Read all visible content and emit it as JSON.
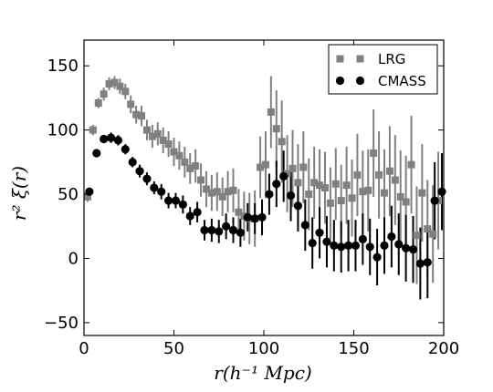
{
  "chart_data": {
    "type": "scatter",
    "xlabel": "r(h⁻¹ Mpc)",
    "ylabel": "r² ξ(r)",
    "xlim": [
      0,
      200
    ],
    "ylim": [
      -60,
      170
    ],
    "xticks": [
      "0",
      "50",
      "100",
      "150",
      "200"
    ],
    "yticks": [
      "−50",
      "0",
      "50",
      "100",
      "150"
    ],
    "xtick_values": [
      0,
      50,
      100,
      150,
      200
    ],
    "ytick_values": [
      -50,
      0,
      50,
      100,
      150
    ],
    "grid": false,
    "legend_position": "top-right",
    "series": [
      {
        "name": "LRG",
        "marker": "square",
        "color": "#808080",
        "x": [
          2,
          5,
          8,
          11,
          14,
          17,
          20,
          23,
          26,
          29,
          32,
          35,
          38,
          41,
          44,
          47,
          50,
          53,
          56,
          59,
          62,
          65,
          68,
          71,
          74,
          77,
          80,
          83,
          86,
          89,
          92,
          95,
          98,
          101,
          104,
          107,
          110,
          113,
          116,
          119,
          122,
          125,
          128,
          131,
          134,
          137,
          140,
          143,
          146,
          149,
          152,
          155,
          158,
          161,
          164,
          167,
          170,
          173,
          176,
          179,
          182,
          185,
          188,
          191,
          194,
          197
        ],
        "y": [
          48,
          100,
          121,
          128,
          136,
          137,
          134,
          130,
          120,
          112,
          111,
          100,
          95,
          97,
          92,
          89,
          83,
          80,
          75,
          70,
          72,
          61,
          54,
          51,
          52,
          48,
          52,
          53,
          36,
          33,
          31,
          31,
          71,
          73,
          114,
          101,
          91,
          66,
          70,
          59,
          71,
          50,
          59,
          57,
          55,
          43,
          58,
          45,
          57,
          47,
          65,
          52,
          53,
          82,
          65,
          51,
          68,
          61,
          48,
          44,
          73,
          18,
          51,
          23,
          19,
          45
        ],
        "err": [
          4,
          4,
          4,
          5,
          5,
          5,
          6,
          6,
          7,
          7,
          8,
          8,
          9,
          9,
          10,
          10,
          11,
          11,
          12,
          12,
          13,
          13,
          14,
          14,
          15,
          15,
          16,
          17,
          18,
          19,
          20,
          22,
          24,
          26,
          28,
          30,
          32,
          30,
          30,
          30,
          28,
          28,
          28,
          28,
          28,
          28,
          28,
          28,
          30,
          30,
          32,
          32,
          32,
          34,
          34,
          34,
          35,
          35,
          36,
          36,
          38,
          38,
          38,
          38,
          38,
          38
        ]
      },
      {
        "name": "CMASS",
        "marker": "circle",
        "color": "#000000",
        "x": [
          3,
          7,
          11,
          15,
          19,
          23,
          27,
          31,
          35,
          39,
          43,
          47,
          51,
          55,
          59,
          63,
          67,
          71,
          75,
          79,
          83,
          87,
          91,
          95,
          99,
          103,
          107,
          111,
          115,
          119,
          123,
          127,
          131,
          135,
          139,
          143,
          147,
          151,
          155,
          159,
          163,
          167,
          171,
          175,
          179,
          183,
          187,
          191,
          195,
          199
        ],
        "y": [
          52,
          82,
          93,
          94,
          92,
          85,
          75,
          68,
          62,
          55,
          52,
          45,
          45,
          42,
          33,
          36,
          22,
          22,
          21,
          25,
          22,
          20,
          32,
          31,
          32,
          50,
          58,
          64,
          49,
          41,
          26,
          12,
          20,
          13,
          10,
          9,
          10,
          10,
          15,
          9,
          1,
          10,
          17,
          11,
          8,
          7,
          -4,
          -3,
          45,
          52
        ],
        "err": [
          3,
          3,
          3,
          4,
          4,
          4,
          4,
          5,
          5,
          5,
          6,
          6,
          6,
          7,
          7,
          8,
          8,
          9,
          9,
          10,
          10,
          11,
          11,
          12,
          14,
          16,
          18,
          20,
          20,
          20,
          20,
          20,
          20,
          20,
          20,
          20,
          20,
          20,
          20,
          22,
          22,
          22,
          24,
          24,
          26,
          26,
          28,
          28,
          30,
          30
        ]
      }
    ]
  }
}
